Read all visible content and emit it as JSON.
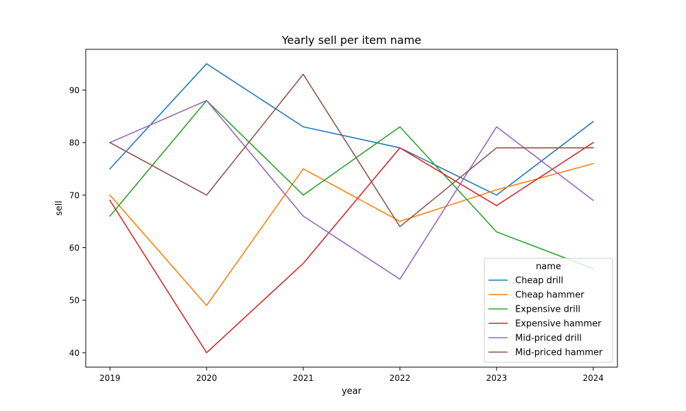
{
  "chart_data": {
    "type": "line",
    "title": "Yearly sell per item name",
    "xlabel": "year",
    "ylabel": "sell",
    "x": [
      2019,
      2020,
      2021,
      2022,
      2023,
      2024
    ],
    "xticks": [
      "2019",
      "2020",
      "2021",
      "2022",
      "2023",
      "2024"
    ],
    "yticks": [
      40,
      50,
      60,
      70,
      80,
      90
    ],
    "xlim": [
      2018.75,
      2024.25
    ],
    "ylim": [
      37.25,
      97.75
    ],
    "grid": false,
    "legend": {
      "title": "name",
      "placement": "lower-right"
    },
    "series": [
      {
        "name": "Cheap drill",
        "color": "#1f77b4",
        "values": [
          75,
          95,
          83,
          79,
          70,
          84
        ]
      },
      {
        "name": "Cheap hammer",
        "color": "#ff7f0e",
        "values": [
          70,
          49,
          75,
          65,
          71,
          76
        ]
      },
      {
        "name": "Expensive drill",
        "color": "#2ca02c",
        "values": [
          66,
          88,
          70,
          83,
          63,
          56
        ]
      },
      {
        "name": "Expensive hammer",
        "color": "#d62728",
        "values": [
          69,
          40,
          57,
          79,
          68,
          80
        ]
      },
      {
        "name": "Mid-priced drill",
        "color": "#9467bd",
        "values": [
          80,
          88,
          66,
          54,
          83,
          69
        ]
      },
      {
        "name": "Mid-priced hammer",
        "color": "#8c564b",
        "values": [
          80,
          70,
          93,
          64,
          79,
          79
        ]
      }
    ]
  }
}
